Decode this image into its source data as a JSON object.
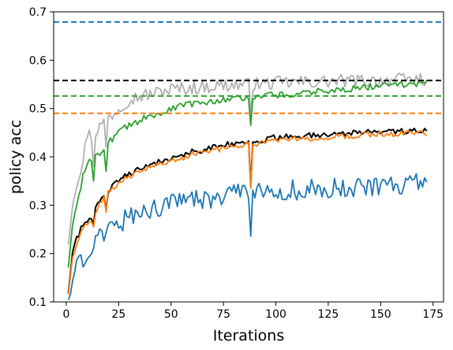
{
  "chart_data": {
    "type": "line",
    "title": "",
    "xlabel": "Iterations",
    "ylabel": "policy acc",
    "xlim": [
      -6,
      180
    ],
    "ylim": [
      0.1,
      0.7
    ],
    "xticks": [
      0,
      25,
      50,
      75,
      100,
      125,
      150,
      175
    ],
    "yticks": [
      0.1,
      0.2,
      0.3,
      0.4,
      0.5,
      0.6,
      0.7
    ],
    "grid": false,
    "legend": "none",
    "series": [
      {
        "color": "#b0b0b0",
        "knots": [
          [
            1,
            0.22
          ],
          [
            3,
            0.3
          ],
          [
            5,
            0.35
          ],
          [
            8,
            0.39
          ],
          [
            10,
            0.45
          ],
          [
            13,
            0.44
          ],
          [
            15,
            0.46
          ],
          [
            18,
            0.47
          ],
          [
            20,
            0.48
          ],
          [
            25,
            0.5
          ],
          [
            30,
            0.52
          ],
          [
            40,
            0.53
          ],
          [
            50,
            0.54
          ],
          [
            60,
            0.543
          ],
          [
            75,
            0.548
          ],
          [
            90,
            0.55
          ],
          [
            100,
            0.553
          ],
          [
            125,
            0.556
          ],
          [
            150,
            0.558
          ],
          [
            172,
            0.561
          ]
        ],
        "noise": 0.014,
        "dips": [
          [
            13,
            0.38
          ],
          [
            19,
            0.42
          ],
          [
            88,
            0.49
          ]
        ]
      },
      {
        "color": "#2ca02c",
        "knots": [
          [
            1,
            0.17
          ],
          [
            3,
            0.26
          ],
          [
            5,
            0.3
          ],
          [
            8,
            0.36
          ],
          [
            10,
            0.39
          ],
          [
            13,
            0.4
          ],
          [
            16,
            0.41
          ],
          [
            20,
            0.43
          ],
          [
            25,
            0.45
          ],
          [
            30,
            0.465
          ],
          [
            40,
            0.485
          ],
          [
            50,
            0.5
          ],
          [
            60,
            0.51
          ],
          [
            75,
            0.52
          ],
          [
            85,
            0.523
          ],
          [
            100,
            0.528
          ],
          [
            125,
            0.537
          ],
          [
            150,
            0.547
          ],
          [
            172,
            0.553
          ]
        ],
        "noise": 0.007,
        "dips": [
          [
            13,
            0.35
          ],
          [
            19,
            0.37
          ],
          [
            88,
            0.465
          ]
        ]
      },
      {
        "color": "#000000",
        "knots": [
          [
            1,
            0.12
          ],
          [
            3,
            0.2
          ],
          [
            5,
            0.23
          ],
          [
            8,
            0.26
          ],
          [
            10,
            0.27
          ],
          [
            13,
            0.28
          ],
          [
            16,
            0.31
          ],
          [
            20,
            0.33
          ],
          [
            25,
            0.35
          ],
          [
            30,
            0.365
          ],
          [
            40,
            0.385
          ],
          [
            50,
            0.395
          ],
          [
            60,
            0.41
          ],
          [
            75,
            0.425
          ],
          [
            85,
            0.43
          ],
          [
            100,
            0.44
          ],
          [
            125,
            0.447
          ],
          [
            150,
            0.452
          ],
          [
            172,
            0.454
          ]
        ],
        "noise": 0.006,
        "dips": [
          [
            13,
            0.26
          ],
          [
            19,
            0.29
          ],
          [
            88,
            0.34
          ]
        ]
      },
      {
        "color": "#ff7f0e",
        "knots": [
          [
            1,
            0.115
          ],
          [
            3,
            0.19
          ],
          [
            5,
            0.22
          ],
          [
            8,
            0.25
          ],
          [
            10,
            0.265
          ],
          [
            13,
            0.275
          ],
          [
            16,
            0.305
          ],
          [
            20,
            0.325
          ],
          [
            25,
            0.345
          ],
          [
            30,
            0.36
          ],
          [
            40,
            0.38
          ],
          [
            50,
            0.39
          ],
          [
            60,
            0.405
          ],
          [
            75,
            0.418
          ],
          [
            85,
            0.423
          ],
          [
            100,
            0.435
          ],
          [
            125,
            0.441
          ],
          [
            150,
            0.447
          ],
          [
            172,
            0.449
          ]
        ],
        "noise": 0.006,
        "dips": [
          [
            13,
            0.255
          ],
          [
            19,
            0.285
          ],
          [
            88,
            0.335
          ]
        ]
      },
      {
        "color": "#1f77b4",
        "knots": [
          [
            1,
            0.1
          ],
          [
            3,
            0.14
          ],
          [
            5,
            0.17
          ],
          [
            8,
            0.19
          ],
          [
            10,
            0.21
          ],
          [
            15,
            0.23
          ],
          [
            20,
            0.25
          ],
          [
            25,
            0.265
          ],
          [
            30,
            0.275
          ],
          [
            40,
            0.29
          ],
          [
            50,
            0.3
          ],
          [
            60,
            0.31
          ],
          [
            75,
            0.32
          ],
          [
            85,
            0.323
          ],
          [
            100,
            0.33
          ],
          [
            125,
            0.335
          ],
          [
            150,
            0.34
          ],
          [
            172,
            0.346
          ]
        ],
        "noise": 0.022,
        "dips": [
          [
            13,
            0.21
          ],
          [
            88,
            0.236
          ]
        ]
      }
    ],
    "reference_lines": [
      {
        "y": 0.679,
        "color": "#1f77b4"
      },
      {
        "y": 0.558,
        "color": "#000000"
      },
      {
        "y": 0.526,
        "color": "#2ca02c"
      },
      {
        "y": 0.49,
        "color": "#ff7f0e"
      }
    ]
  }
}
